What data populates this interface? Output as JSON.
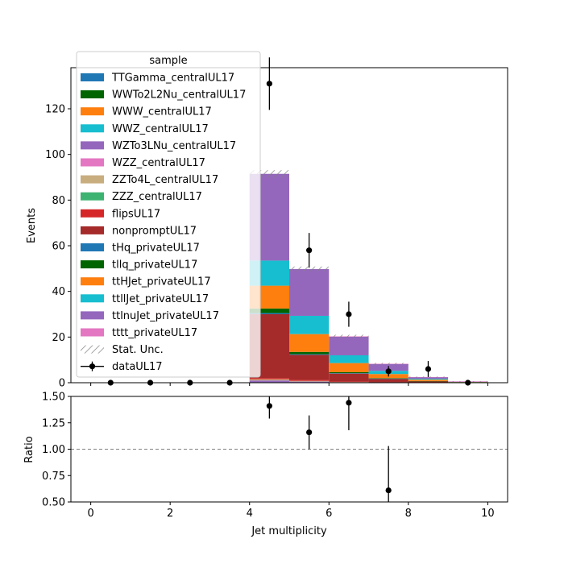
{
  "chart_data": {
    "type": "bar",
    "stacked": true,
    "xlabel": "Jet multiplicity",
    "top": {
      "ylabel": "Events",
      "ylim": [
        0,
        138
      ],
      "yticks": [
        0,
        20,
        40,
        60,
        80,
        100,
        120
      ]
    },
    "bottom": {
      "ylabel": "Ratio",
      "ylim": [
        0.5,
        1.5
      ],
      "yticks": [
        0.5,
        0.75,
        1.0,
        1.25,
        1.5
      ],
      "ytick_labels": [
        "0.50",
        "0.75",
        "1.00",
        "1.25",
        "1.50"
      ],
      "reference_line": 1.0
    },
    "xlim": [
      -0.5,
      10.5
    ],
    "xticks": [
      0,
      2,
      4,
      6,
      8,
      10
    ],
    "bins": [
      [
        4,
        5
      ],
      [
        5,
        6
      ],
      [
        6,
        7
      ],
      [
        7,
        8
      ],
      [
        8,
        9
      ],
      [
        9,
        10
      ]
    ],
    "legend": {
      "title": "sample",
      "position": "upper left",
      "stat_label": "Stat. Unc.",
      "data_label": "dataUL17"
    },
    "series": [
      {
        "name": "TTGamma_centralUL17",
        "color": "#1f77b4",
        "values": [
          0,
          0,
          0,
          0,
          0,
          0
        ]
      },
      {
        "name": "WWTo2L2Nu_centralUL17",
        "color": "#006400",
        "values": [
          0,
          0,
          0,
          0,
          0,
          0
        ]
      },
      {
        "name": "WWW_centralUL17",
        "color": "#ff7f0e",
        "values": [
          0,
          0,
          0,
          0,
          0,
          0
        ]
      },
      {
        "name": "WWZ_centralUL17",
        "color": "#17becf",
        "values": [
          0,
          0,
          0,
          0,
          0,
          0
        ]
      },
      {
        "name": "WZTo3LNu_centralUL17",
        "color": "#9467bd",
        "values": [
          1.0,
          0.5,
          0.2,
          0.1,
          0,
          0
        ]
      },
      {
        "name": "WZZ_centralUL17",
        "color": "#e377c2",
        "values": [
          0,
          0,
          0,
          0,
          0,
          0
        ]
      },
      {
        "name": "ZZTo4L_centralUL17",
        "color": "#c8ad7f",
        "values": [
          0.5,
          0.3,
          0.1,
          0,
          0,
          0
        ]
      },
      {
        "name": "ZZZ_centralUL17",
        "color": "#3cb371",
        "values": [
          0,
          0,
          0,
          0,
          0,
          0
        ]
      },
      {
        "name": "flipsUL17",
        "color": "#d62728",
        "values": [
          0.5,
          0.4,
          0.2,
          0.1,
          0.05,
          0
        ]
      },
      {
        "name": "nonpromptUL17",
        "color": "#a52a2a",
        "values": [
          28,
          11,
          3.5,
          1.5,
          0.6,
          0.2
        ]
      },
      {
        "name": "tHq_privateUL17",
        "color": "#1f77b4",
        "values": [
          0.5,
          0.3,
          0.2,
          0.1,
          0,
          0
        ]
      },
      {
        "name": "tllq_privateUL17",
        "color": "#006400",
        "values": [
          2.0,
          1.0,
          0.4,
          0.2,
          0.1,
          0
        ]
      },
      {
        "name": "ttHJet_privateUL17",
        "color": "#ff7f0e",
        "values": [
          10.0,
          7.8,
          4.0,
          1.8,
          0.6,
          0.15
        ]
      },
      {
        "name": "ttllJet_privateUL17",
        "color": "#17becf",
        "values": [
          11.0,
          8.0,
          3.4,
          1.4,
          0.4,
          0.1
        ]
      },
      {
        "name": "ttlnuJet_privateUL17",
        "color": "#9467bd",
        "values": [
          38.0,
          20.5,
          8.2,
          3.0,
          0.7,
          0.1
        ]
      },
      {
        "name": "tttt_privateUL17",
        "color": "#e377c2",
        "values": [
          0,
          0,
          0.1,
          0.1,
          0.05,
          0.02
        ]
      }
    ],
    "stat_unc": [
      1.6,
      1.1,
      0.7,
      0.4,
      0.2,
      0.1
    ],
    "data": {
      "name": "dataUL17",
      "x": [
        0.5,
        1.5,
        2.5,
        3.5,
        4.5,
        5.5,
        6.5,
        7.5,
        8.5,
        9.5
      ],
      "y": [
        0,
        0,
        0,
        0,
        131,
        58,
        30,
        5,
        6,
        0
      ],
      "err": [
        0,
        0,
        0,
        0,
        11.5,
        7.6,
        5.5,
        2.3,
        3.5,
        0
      ]
    },
    "ratio": {
      "x": [
        4.5,
        5.5,
        6.5,
        7.5
      ],
      "y": [
        1.41,
        1.16,
        1.44,
        0.61
      ],
      "err": [
        0.12,
        0.16,
        0.26,
        0.42
      ]
    }
  }
}
